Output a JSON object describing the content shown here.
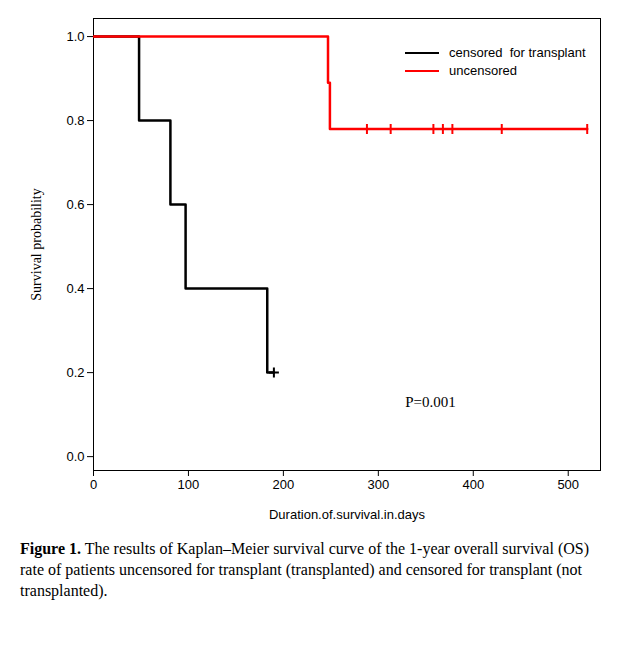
{
  "chart_data": {
    "type": "step",
    "xlabel": "Duration.of.survival.in.days",
    "ylabel": "Survival probability",
    "caption_label": "Figure 1.",
    "caption": "The results of Kaplan–Meier survival curve of the 1-year overall survival (OS) rate of patients uncensored for transplant (transplanted) and censored for transplant (not transplanted).",
    "xlim": [
      0,
      534
    ],
    "xticks": [
      0,
      100,
      200,
      300,
      400,
      500
    ],
    "ylim": [
      -0.033,
      1.043
    ],
    "yticks": [
      {
        "value": 0,
        "label": "0.0"
      },
      {
        "value": 0.2,
        "label": "0.2"
      },
      {
        "value": 0.4,
        "label": "0.4"
      },
      {
        "value": 0.6,
        "label": "0.6"
      },
      {
        "value": 0.8,
        "label": "0.8"
      },
      {
        "value": 1,
        "label": "1.0"
      }
    ],
    "legend": "topright",
    "series": [
      {
        "name": "censored  for transplant",
        "color": "#000000",
        "marker": "plus",
        "x": [
          0,
          48,
          81,
          97,
          183,
          190
        ],
        "values": [
          1.0,
          0.8,
          0.6,
          0.4,
          0.2,
          0.2
        ],
        "censored": {
          "x": [
            190
          ],
          "values": [
            0.2
          ]
        }
      },
      {
        "name": "uncensored",
        "color": "#ff0000",
        "marker": "tick",
        "x": [
          0,
          247,
          249,
          520
        ],
        "values": [
          1.0,
          0.89,
          0.78,
          0.78
        ],
        "censored": {
          "x": [
            288,
            313,
            358,
            368,
            378,
            430,
            520
          ],
          "values": [
            0.78,
            0.78,
            0.78,
            0.78,
            0.78,
            0.78,
            0.78
          ]
        }
      }
    ],
    "annotations": [
      {
        "text": "P=0.001",
        "x": 355,
        "y": 0.13
      }
    ]
  }
}
